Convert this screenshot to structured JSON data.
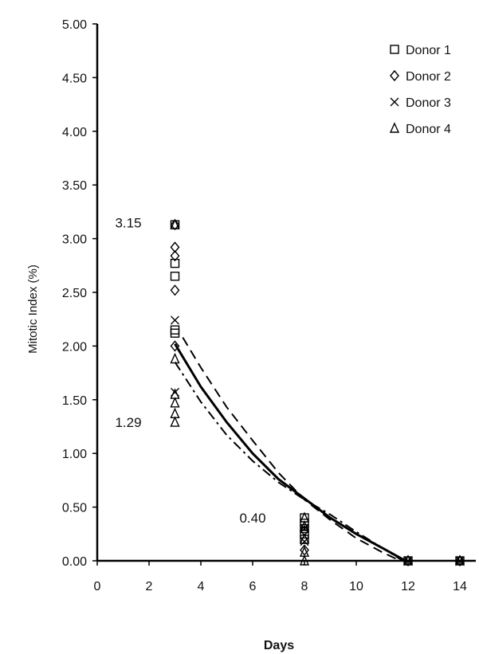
{
  "chart_data": {
    "type": "scatter",
    "xlabel": "Days",
    "ylabel": "Mitotic Index (%)",
    "xlim": [
      0,
      14
    ],
    "ylim": [
      0,
      5
    ],
    "x_ticks": [
      "0",
      "2",
      "4",
      "6",
      "8",
      "10",
      "12",
      "14"
    ],
    "y_ticks": [
      "0.00",
      "0.50",
      "1.00",
      "1.50",
      "2.00",
      "2.50",
      "3.00",
      "3.50",
      "4.00",
      "4.50",
      "5.00"
    ],
    "grid": false,
    "legend_position": "top-right",
    "annotations": [
      {
        "text": "3.15",
        "x": 1.2,
        "y": 3.15
      },
      {
        "text": "1.29",
        "x": 1.2,
        "y": 1.29
      },
      {
        "text": "0.40",
        "x": 6.0,
        "y": 0.4
      }
    ],
    "series": [
      {
        "name": "Donor 1",
        "marker": "square",
        "points": [
          [
            3,
            3.13
          ],
          [
            3,
            2.77
          ],
          [
            3,
            2.65
          ],
          [
            3,
            2.15
          ],
          [
            3,
            2.12
          ],
          [
            8,
            0.4
          ],
          [
            8,
            0.35
          ],
          [
            8,
            0.3
          ],
          [
            8,
            0.25
          ],
          [
            8,
            0.2
          ],
          [
            12,
            0
          ],
          [
            14,
            0
          ]
        ]
      },
      {
        "name": "Donor 2",
        "marker": "diamond",
        "points": [
          [
            3,
            3.13
          ],
          [
            3,
            2.92
          ],
          [
            3,
            2.84
          ],
          [
            3,
            2.52
          ],
          [
            3,
            2.0
          ],
          [
            8,
            0.28
          ],
          [
            8,
            0.1
          ],
          [
            12,
            0
          ],
          [
            14,
            0
          ]
        ]
      },
      {
        "name": "Donor 3",
        "marker": "cross",
        "points": [
          [
            3,
            2.24
          ],
          [
            3,
            1.57
          ],
          [
            8,
            0.3
          ],
          [
            8,
            0.18
          ],
          [
            12,
            0
          ],
          [
            14,
            0
          ]
        ]
      },
      {
        "name": "Donor 4",
        "marker": "triangle",
        "points": [
          [
            3,
            3.13
          ],
          [
            3,
            1.88
          ],
          [
            3,
            1.55
          ],
          [
            3,
            1.47
          ],
          [
            3,
            1.37
          ],
          [
            3,
            1.29
          ],
          [
            8,
            0.4
          ],
          [
            8,
            0.32
          ],
          [
            8,
            0.2
          ],
          [
            8,
            0.08
          ],
          [
            8,
            0
          ],
          [
            12,
            0
          ],
          [
            14,
            0
          ]
        ]
      }
    ],
    "fit_curves": [
      {
        "style": "solid",
        "points": [
          [
            3,
            2.02
          ],
          [
            4,
            1.62
          ],
          [
            5,
            1.29
          ],
          [
            6,
            1.0
          ],
          [
            7,
            0.76
          ],
          [
            8,
            0.58
          ],
          [
            9,
            0.4
          ],
          [
            10,
            0.25
          ],
          [
            11,
            0.12
          ],
          [
            11.9,
            0
          ]
        ]
      },
      {
        "style": "dashed",
        "points": [
          [
            3.3,
            2.08
          ],
          [
            4,
            1.8
          ],
          [
            5,
            1.43
          ],
          [
            6,
            1.12
          ],
          [
            7,
            0.82
          ],
          [
            8,
            0.57
          ],
          [
            9,
            0.38
          ],
          [
            10,
            0.21
          ],
          [
            11,
            0.08
          ],
          [
            11.7,
            0
          ]
        ]
      },
      {
        "style": "dashdot",
        "points": [
          [
            3,
            1.85
          ],
          [
            4,
            1.48
          ],
          [
            5,
            1.17
          ],
          [
            6,
            0.93
          ],
          [
            7,
            0.73
          ],
          [
            8,
            0.57
          ],
          [
            9,
            0.43
          ],
          [
            10,
            0.27
          ],
          [
            11,
            0.12
          ],
          [
            11.8,
            0
          ]
        ]
      }
    ]
  }
}
